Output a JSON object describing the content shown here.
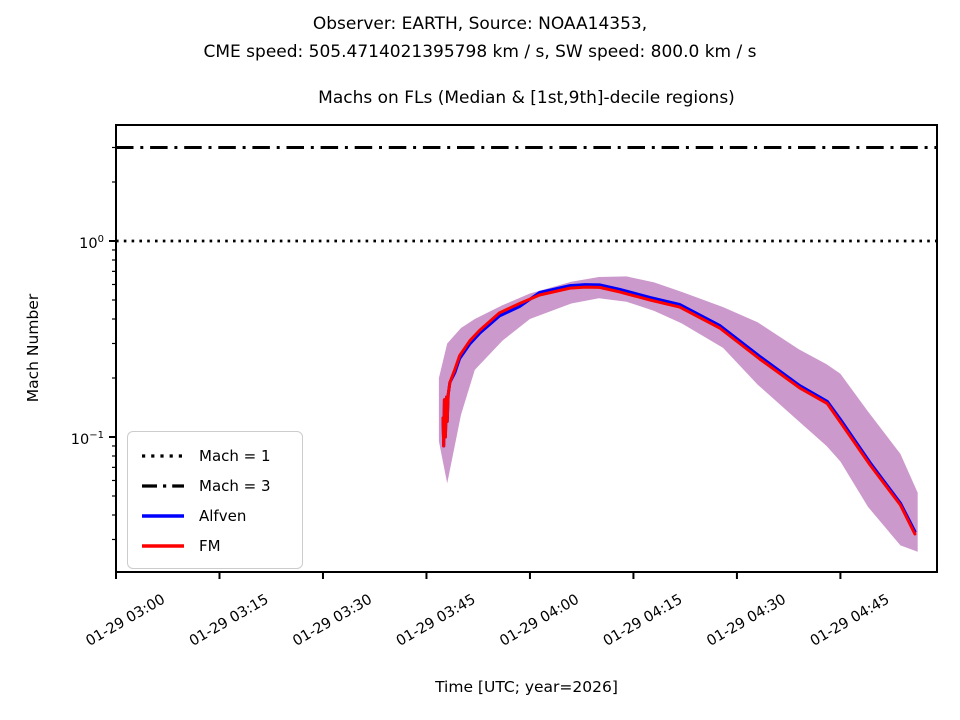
{
  "figure": {
    "suptitle_line1": "Observer: EARTH, Source: NOAA14353,",
    "suptitle_line2": "CME speed: 505.4714021395798 km / s, SW speed: 800.0 km / s"
  },
  "chart_data": {
    "type": "line",
    "title": "Machs on FLs (Median & [1st,9th]-decile regions)",
    "xlabel": "Time [UTC; year=2026]",
    "ylabel": "Mach Number",
    "x_axis": {
      "date": "01-29",
      "start_time": "03:00",
      "units": "minutes after 01-29 03:00 UTC",
      "tick_labels": [
        "01-29 03:00",
        "01-29 03:15",
        "01-29 03:30",
        "01-29 03:45",
        "01-29 04:00",
        "01-29 04:15",
        "01-29 04:30",
        "01-29 04:45"
      ],
      "tick_minutes": [
        0,
        15,
        30,
        45,
        60,
        75,
        90,
        105
      ],
      "range_minutes": [
        0,
        119
      ]
    },
    "y_axis": {
      "scale": "log",
      "range": [
        0.0205,
        3.9
      ],
      "tick_labels": [
        {
          "base": "10",
          "exp": "0",
          "value": 1
        },
        {
          "base": "10",
          "exp": "−1",
          "value": 0.1
        }
      ]
    },
    "hlines": [
      {
        "name": "Mach = 1",
        "value": 1,
        "style": "dotted",
        "color": "#000000"
      },
      {
        "name": "Mach = 3",
        "value": 3,
        "style": "dashdot",
        "color": "#000000"
      }
    ],
    "legend": {
      "entries": [
        {
          "label": "Mach = 1",
          "color": "#000000",
          "style": "dotted"
        },
        {
          "label": "Mach = 3",
          "color": "#000000",
          "style": "dashdot"
        },
        {
          "label": "Alfven",
          "color": "#0000ff",
          "style": "solid"
        },
        {
          "label": "FM",
          "color": "#ff0000",
          "style": "solid"
        }
      ]
    },
    "series": [
      {
        "name": "Alfven",
        "color": "#0000ff",
        "x_minutes": [
          47.4,
          47.5,
          47.6,
          47.75,
          47.9,
          48.0,
          48.15,
          48.4,
          49.1,
          49.8,
          51.3,
          52.7,
          55.6,
          58.5,
          61.4,
          65.8,
          68.0,
          70.1,
          73.0,
          77.4,
          81.7,
          87.5,
          93.3,
          99.1,
          103.1,
          105.0,
          109.3,
          113.7,
          115.8
        ],
        "mach": [
          0.125,
          0.09,
          0.155,
          0.1,
          0.16,
          0.12,
          0.165,
          0.19,
          0.212,
          0.251,
          0.299,
          0.338,
          0.415,
          0.463,
          0.546,
          0.592,
          0.599,
          0.597,
          0.567,
          0.515,
          0.474,
          0.371,
          0.258,
          0.183,
          0.152,
          0.123,
          0.074,
          0.046,
          0.033
        ]
      },
      {
        "name": "FM",
        "color": "#ff0000",
        "x_minutes": [
          47.4,
          47.5,
          47.6,
          47.75,
          47.9,
          48.0,
          48.15,
          48.4,
          49.1,
          49.8,
          51.3,
          52.7,
          55.6,
          58.5,
          61.4,
          65.8,
          68.0,
          70.1,
          73.0,
          77.4,
          81.7,
          87.5,
          93.3,
          99.1,
          103.1,
          105.0,
          109.3,
          113.7,
          115.8
        ],
        "mach": [
          0.125,
          0.09,
          0.155,
          0.1,
          0.16,
          0.12,
          0.165,
          0.19,
          0.22,
          0.26,
          0.31,
          0.35,
          0.43,
          0.48,
          0.53,
          0.575,
          0.582,
          0.58,
          0.55,
          0.5,
          0.46,
          0.36,
          0.25,
          0.178,
          0.148,
          0.119,
          0.072,
          0.045,
          0.032
        ]
      }
    ],
    "band": {
      "name": "[1st,9th]-decile region",
      "color": "#CC99CC",
      "x_minutes": [
        46.8,
        48,
        50,
        52,
        56,
        60,
        66,
        70,
        74,
        78,
        82,
        88,
        93,
        99,
        103,
        105,
        109,
        113.7,
        116.2
      ],
      "upper": [
        0.2,
        0.3,
        0.36,
        0.4,
        0.47,
        0.54,
        0.62,
        0.655,
        0.66,
        0.615,
        0.55,
        0.46,
        0.385,
        0.28,
        0.235,
        0.21,
        0.135,
        0.082,
        0.052
      ],
      "lower": [
        0.095,
        0.058,
        0.13,
        0.22,
        0.31,
        0.4,
        0.48,
        0.51,
        0.49,
        0.44,
        0.38,
        0.285,
        0.185,
        0.12,
        0.09,
        0.075,
        0.044,
        0.028,
        0.026
      ]
    }
  }
}
